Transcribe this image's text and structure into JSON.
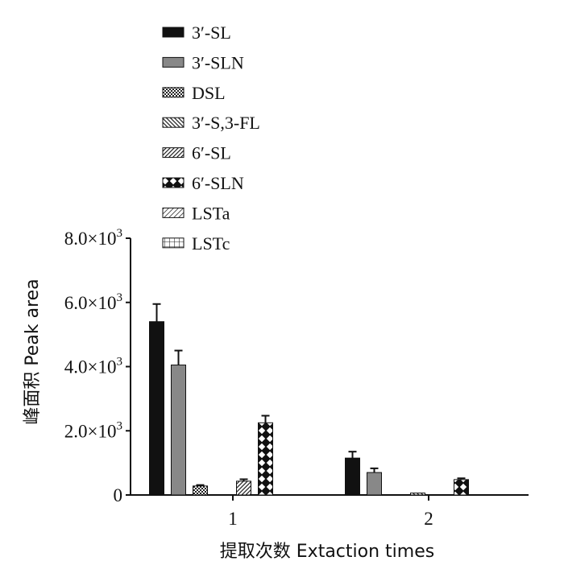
{
  "chart_data": {
    "type": "bar",
    "categories": [
      "1",
      "2"
    ],
    "xlabel": "提取次数  Extaction times",
    "ylabel": "峰面积  Peak area",
    "ylim": [
      0,
      8000
    ],
    "yticks": [
      {
        "value": 0,
        "base": "0",
        "exp": ""
      },
      {
        "value": 2000,
        "base": "2.0×10",
        "exp": "3"
      },
      {
        "value": 4000,
        "base": "4.0×10",
        "exp": "3"
      },
      {
        "value": 6000,
        "base": "6.0×10",
        "exp": "3"
      },
      {
        "value": 8000,
        "base": "8.0×10",
        "exp": "3"
      }
    ],
    "grid": false,
    "legend_position": "top-left",
    "series": [
      {
        "name": "3′-SL",
        "pattern": "solid-black",
        "values": [
          5400,
          1150
        ],
        "errors": [
          550,
          200
        ]
      },
      {
        "name": "3′-SLN",
        "pattern": "solid-gray",
        "values": [
          4050,
          700
        ],
        "errors": [
          450,
          130
        ]
      },
      {
        "name": "DSL",
        "pattern": "dense-check",
        "values": [
          280,
          0
        ],
        "errors": [
          30,
          0
        ]
      },
      {
        "name": "3′-S,3-FL",
        "pattern": "back-hatch",
        "values": [
          0,
          60
        ],
        "errors": [
          0,
          0
        ]
      },
      {
        "name": "6′-SL",
        "pattern": "diag-hatch",
        "values": [
          430,
          0
        ],
        "errors": [
          60,
          0
        ]
      },
      {
        "name": "6′-SLN",
        "pattern": "diamond",
        "values": [
          2250,
          480
        ],
        "errors": [
          220,
          40
        ]
      },
      {
        "name": "LSTa",
        "pattern": "light-diag",
        "values": [
          0,
          0
        ],
        "errors": [
          0,
          0
        ]
      },
      {
        "name": "LSTc",
        "pattern": "grid",
        "values": [
          0,
          0
        ],
        "errors": [
          0,
          0
        ]
      }
    ]
  }
}
